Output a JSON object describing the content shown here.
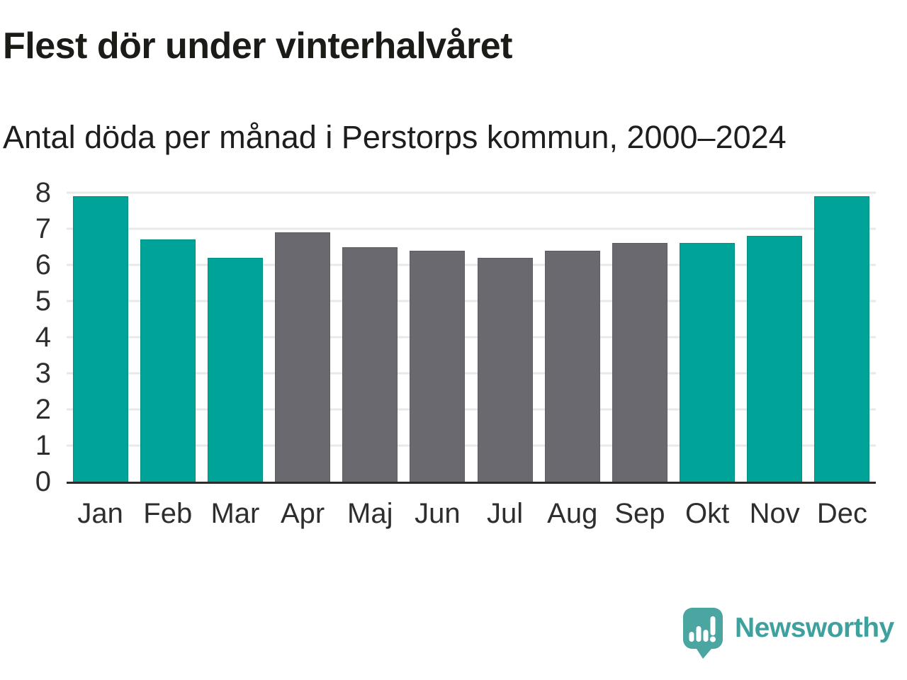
{
  "header": {
    "title": "Flest dör under vinterhalvåret",
    "subtitle": "Antal döda per månad i Perstorps kommun, 2000–2024"
  },
  "chart_data": {
    "type": "bar",
    "title": "Flest dör under vinterhalvåret",
    "subtitle": "Antal döda per månad i Perstorps kommun, 2000–2024",
    "categories": [
      "Jan",
      "Feb",
      "Mar",
      "Apr",
      "Maj",
      "Jun",
      "Jul",
      "Aug",
      "Sep",
      "Okt",
      "Nov",
      "Dec"
    ],
    "values": [
      7.9,
      6.7,
      6.2,
      6.9,
      6.5,
      6.4,
      6.2,
      6.4,
      6.6,
      6.6,
      6.8,
      7.9
    ],
    "highlighted": [
      true,
      true,
      true,
      false,
      false,
      false,
      false,
      false,
      false,
      true,
      true,
      true
    ],
    "xlabel": "",
    "ylabel": "",
    "ylim": [
      0,
      8
    ],
    "yticks": [
      0,
      1,
      2,
      3,
      4,
      5,
      6,
      7,
      8
    ],
    "grid": true,
    "legend_position": "none",
    "colors": {
      "highlight": "#00a398",
      "base": "#6b6970",
      "gridline": "#e8e8e8",
      "axis_line": "#2b2b2b",
      "axis_text": "#2e2e2e"
    }
  },
  "branding": {
    "logo_text": "Newsworthy",
    "logo_icon": "newsworthy-speech-bubble-chart-icon",
    "logo_bubble_color": "#4ba5a1",
    "logo_text_color": "#3fa19e"
  }
}
